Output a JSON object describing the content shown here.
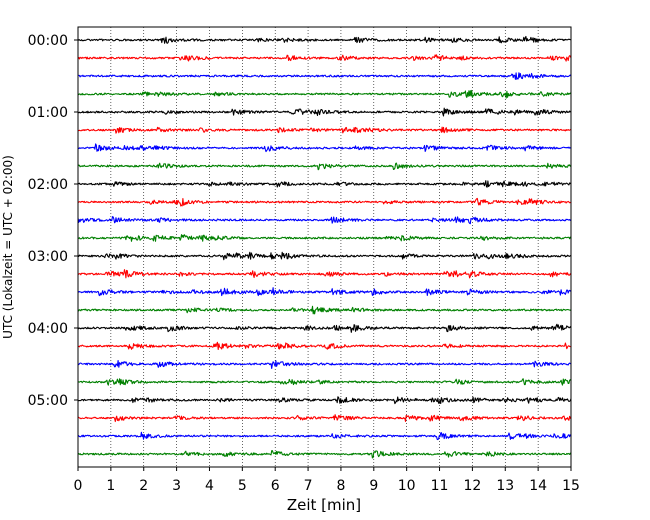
{
  "chart_data": {
    "type": "line",
    "title": "",
    "xlabel": "Zeit  [min]",
    "ylabel": "UTC (Lokalzeit = UTC + 02:00)",
    "xlim": [
      0,
      15
    ],
    "x_ticks": [
      0,
      1,
      2,
      3,
      4,
      5,
      6,
      7,
      8,
      9,
      10,
      11,
      12,
      13,
      14,
      15
    ],
    "y_ticks": [
      "00:00",
      "01:00",
      "02:00",
      "03:00",
      "04:00",
      "05:00"
    ],
    "trace_interval_min": 15,
    "trace_start_times": [
      "00:00",
      "00:15",
      "00:30",
      "00:45",
      "01:00",
      "01:15",
      "01:30",
      "01:45",
      "02:00",
      "02:15",
      "02:30",
      "02:45",
      "03:00",
      "03:15",
      "03:30",
      "03:45",
      "04:00",
      "04:15",
      "04:30",
      "04:45",
      "05:00",
      "05:15",
      "05:30",
      "05:45"
    ],
    "trace_color_cycle": [
      "#000000",
      "#ff0000",
      "#0000ff",
      "#008000"
    ],
    "vertical_grid": "dotted",
    "legend": "none"
  }
}
